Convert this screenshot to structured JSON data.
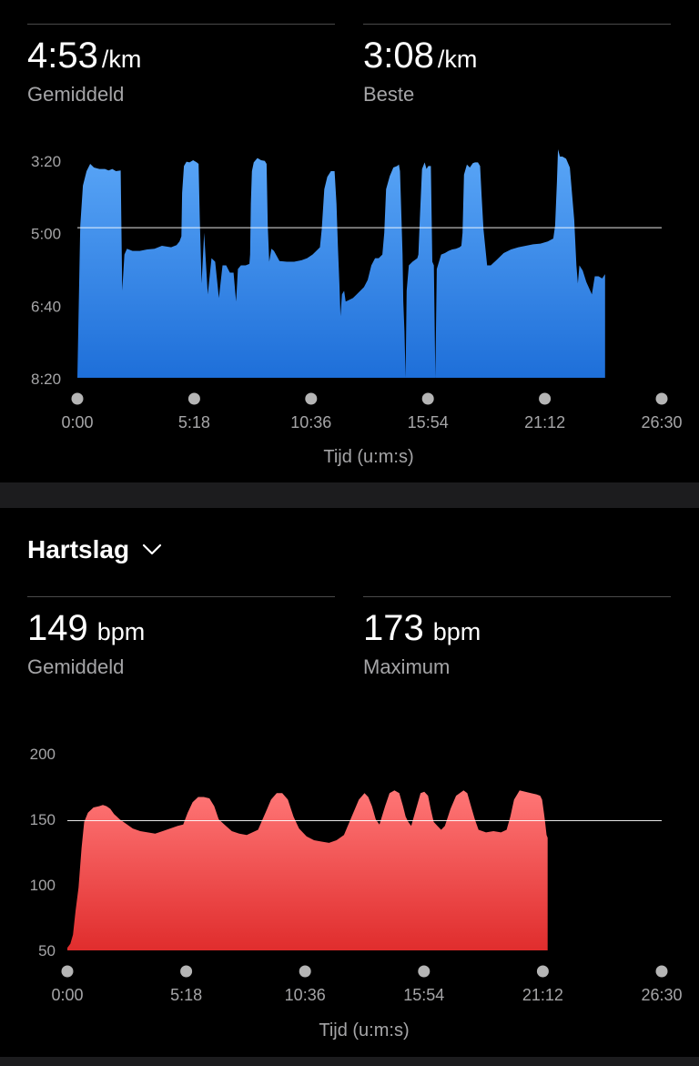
{
  "pace": {
    "average": {
      "value": "4:53",
      "unit": "/km",
      "label": "Gemiddeld"
    },
    "best": {
      "value": "3:08",
      "unit": "/km",
      "label": "Beste"
    }
  },
  "heart_rate": {
    "title": "Hartslag",
    "average": {
      "value": "149",
      "unit": "bpm",
      "label": "Gemiddeld"
    },
    "max": {
      "value": "173",
      "unit": "bpm",
      "label": "Maximum"
    }
  },
  "colors": {
    "pace_top": "#5aa6f7",
    "pace_bottom": "#1e6fd9",
    "hr_top": "#ff7676",
    "hr_bottom": "#e02d2d",
    "grid_text": "#a5a5a7",
    "axis_dot": "#b5b5b5"
  },
  "chart_data": [
    {
      "type": "area",
      "name": "pace",
      "y_ticks": [
        "3:20",
        "5:00",
        "6:40",
        "8:20"
      ],
      "y_tick_seconds": [
        200,
        300,
        400,
        500
      ],
      "ylim_seconds": [
        200,
        500
      ],
      "inverted": true,
      "reference_line_seconds": 293,
      "x_ticks": [
        "0:00",
        "5:18",
        "10:36",
        "15:54",
        "21:12",
        "26:30"
      ],
      "x_tick_seconds": [
        0,
        318,
        636,
        954,
        1272,
        1590
      ],
      "xlim_seconds": [
        0,
        1590
      ],
      "xlabel": "Tijd (u:m:s)",
      "points": [
        [
          0,
          500
        ],
        [
          8,
          290
        ],
        [
          15,
          235
        ],
        [
          25,
          215
        ],
        [
          35,
          205
        ],
        [
          45,
          210
        ],
        [
          60,
          212
        ],
        [
          75,
          212
        ],
        [
          85,
          214
        ],
        [
          95,
          212
        ],
        [
          105,
          215
        ],
        [
          118,
          214
        ],
        [
          122,
          380
        ],
        [
          128,
          330
        ],
        [
          135,
          322
        ],
        [
          150,
          325
        ],
        [
          170,
          325
        ],
        [
          190,
          323
        ],
        [
          210,
          322
        ],
        [
          230,
          318
        ],
        [
          255,
          320
        ],
        [
          270,
          317
        ],
        [
          278,
          312
        ],
        [
          283,
          305
        ],
        [
          285,
          245
        ],
        [
          290,
          208
        ],
        [
          297,
          202
        ],
        [
          305,
          203
        ],
        [
          315,
          200
        ],
        [
          325,
          203
        ],
        [
          330,
          205
        ],
        [
          333,
          280
        ],
        [
          338,
          370
        ],
        [
          345,
          300
        ],
        [
          355,
          385
        ],
        [
          365,
          335
        ],
        [
          375,
          340
        ],
        [
          385,
          390
        ],
        [
          395,
          345
        ],
        [
          405,
          345
        ],
        [
          415,
          355
        ],
        [
          425,
          355
        ],
        [
          432,
          395
        ],
        [
          437,
          350
        ],
        [
          445,
          345
        ],
        [
          458,
          345
        ],
        [
          468,
          343
        ],
        [
          470,
          330
        ],
        [
          472,
          260
        ],
        [
          475,
          215
        ],
        [
          480,
          203
        ],
        [
          490,
          197
        ],
        [
          500,
          200
        ],
        [
          510,
          201
        ],
        [
          515,
          205
        ],
        [
          518,
          290
        ],
        [
          522,
          340
        ],
        [
          528,
          322
        ],
        [
          535,
          325
        ],
        [
          550,
          339
        ],
        [
          570,
          340
        ],
        [
          590,
          340
        ],
        [
          610,
          338
        ],
        [
          625,
          335
        ],
        [
          640,
          330
        ],
        [
          650,
          325
        ],
        [
          660,
          320
        ],
        [
          665,
          295
        ],
        [
          672,
          240
        ],
        [
          680,
          223
        ],
        [
          690,
          215
        ],
        [
          695,
          215
        ],
        [
          700,
          215
        ],
        [
          705,
          260
        ],
        [
          709,
          320
        ],
        [
          713,
          370
        ],
        [
          716,
          415
        ],
        [
          720,
          385
        ],
        [
          726,
          380
        ],
        [
          730,
          395
        ],
        [
          750,
          390
        ],
        [
          760,
          385
        ],
        [
          770,
          380
        ],
        [
          780,
          375
        ],
        [
          790,
          365
        ],
        [
          800,
          345
        ],
        [
          810,
          335
        ],
        [
          820,
          335
        ],
        [
          830,
          330
        ],
        [
          835,
          300
        ],
        [
          840,
          240
        ],
        [
          850,
          222
        ],
        [
          860,
          210
        ],
        [
          870,
          208
        ],
        [
          875,
          206
        ],
        [
          878,
          215
        ],
        [
          882,
          280
        ],
        [
          885,
          330
        ],
        [
          887,
          395
        ],
        [
          890,
          436
        ],
        [
          893,
          500
        ],
        [
          896,
          380
        ],
        [
          902,
          345
        ],
        [
          912,
          340
        ],
        [
          920,
          337
        ],
        [
          925,
          335
        ],
        [
          928,
          330
        ],
        [
          932,
          280
        ],
        [
          938,
          212
        ],
        [
          945,
          203
        ],
        [
          950,
          212
        ],
        [
          955,
          208
        ],
        [
          962,
          208
        ],
        [
          966,
          340
        ],
        [
          970,
          345
        ],
        [
          972,
          420
        ],
        [
          974,
          500
        ],
        [
          978,
          350
        ],
        [
          990,
          330
        ],
        [
          1000,
          328
        ],
        [
          1010,
          325
        ],
        [
          1020,
          323
        ],
        [
          1030,
          322
        ],
        [
          1040,
          320
        ],
        [
          1045,
          318
        ],
        [
          1048,
          300
        ],
        [
          1052,
          220
        ],
        [
          1060,
          206
        ],
        [
          1068,
          210
        ],
        [
          1076,
          204
        ],
        [
          1082,
          203
        ],
        [
          1090,
          203
        ],
        [
          1096,
          208
        ],
        [
          1100,
          250
        ],
        [
          1105,
          295
        ],
        [
          1115,
          345
        ],
        [
          1125,
          345
        ],
        [
          1140,
          338
        ],
        [
          1160,
          328
        ],
        [
          1180,
          323
        ],
        [
          1200,
          320
        ],
        [
          1220,
          318
        ],
        [
          1240,
          316
        ],
        [
          1260,
          315
        ],
        [
          1280,
          312
        ],
        [
          1295,
          308
        ],
        [
          1300,
          290
        ],
        [
          1305,
          230
        ],
        [
          1308,
          185
        ],
        [
          1313,
          195
        ],
        [
          1320,
          195
        ],
        [
          1330,
          198
        ],
        [
          1340,
          210
        ],
        [
          1345,
          240
        ],
        [
          1352,
          282
        ],
        [
          1358,
          345
        ],
        [
          1362,
          370
        ],
        [
          1366,
          345
        ],
        [
          1375,
          352
        ],
        [
          1385,
          368
        ],
        [
          1400,
          385
        ],
        [
          1408,
          360
        ],
        [
          1418,
          360
        ],
        [
          1428,
          363
        ],
        [
          1436,
          357
        ]
      ]
    },
    {
      "type": "area",
      "name": "heart_rate",
      "y_ticks": [
        "50",
        "100",
        "150",
        "200"
      ],
      "y_tick_values": [
        50,
        100,
        150,
        200
      ],
      "ylim": [
        50,
        200
      ],
      "reference_line": 149,
      "x_ticks": [
        "0:00",
        "5:18",
        "10:36",
        "15:54",
        "21:12",
        "26:30"
      ],
      "x_tick_seconds": [
        0,
        318,
        636,
        954,
        1272,
        1590
      ],
      "xlim_seconds": [
        0,
        1590
      ],
      "xlabel": "Tijd (u:m:s)",
      "points": [
        [
          0,
          52
        ],
        [
          8,
          55
        ],
        [
          15,
          62
        ],
        [
          22,
          80
        ],
        [
          30,
          98
        ],
        [
          38,
          128
        ],
        [
          45,
          148
        ],
        [
          55,
          155
        ],
        [
          70,
          159
        ],
        [
          85,
          160
        ],
        [
          95,
          161
        ],
        [
          105,
          160
        ],
        [
          115,
          158
        ],
        [
          125,
          154
        ],
        [
          140,
          150
        ],
        [
          160,
          146
        ],
        [
          175,
          143
        ],
        [
          195,
          141
        ],
        [
          215,
          140
        ],
        [
          235,
          139
        ],
        [
          255,
          141
        ],
        [
          275,
          143
        ],
        [
          295,
          145
        ],
        [
          310,
          146
        ],
        [
          322,
          155
        ],
        [
          335,
          163
        ],
        [
          350,
          167
        ],
        [
          365,
          167
        ],
        [
          380,
          166
        ],
        [
          393,
          160
        ],
        [
          405,
          150
        ],
        [
          420,
          146
        ],
        [
          440,
          141
        ],
        [
          460,
          139
        ],
        [
          480,
          138
        ],
        [
          495,
          140
        ],
        [
          510,
          142
        ],
        [
          530,
          155
        ],
        [
          545,
          165
        ],
        [
          560,
          170
        ],
        [
          575,
          170
        ],
        [
          590,
          165
        ],
        [
          605,
          152
        ],
        [
          620,
          143
        ],
        [
          640,
          137
        ],
        [
          660,
          134
        ],
        [
          680,
          133
        ],
        [
          700,
          132
        ],
        [
          720,
          134
        ],
        [
          740,
          138
        ],
        [
          765,
          155
        ],
        [
          780,
          165
        ],
        [
          795,
          170
        ],
        [
          805,
          167
        ],
        [
          815,
          160
        ],
        [
          825,
          150
        ],
        [
          835,
          146
        ],
        [
          850,
          160
        ],
        [
          862,
          170
        ],
        [
          875,
          172
        ],
        [
          888,
          170
        ],
        [
          898,
          160
        ],
        [
          905,
          152
        ],
        [
          912,
          148
        ],
        [
          920,
          145
        ],
        [
          935,
          160
        ],
        [
          945,
          170
        ],
        [
          955,
          171
        ],
        [
          965,
          168
        ],
        [
          972,
          158
        ],
        [
          980,
          148
        ],
        [
          990,
          145
        ],
        [
          1000,
          142
        ],
        [
          1010,
          145
        ],
        [
          1025,
          158
        ],
        [
          1040,
          168
        ],
        [
          1060,
          172
        ],
        [
          1070,
          170
        ],
        [
          1080,
          160
        ],
        [
          1090,
          150
        ],
        [
          1100,
          142
        ],
        [
          1120,
          140
        ],
        [
          1140,
          141
        ],
        [
          1160,
          140
        ],
        [
          1175,
          142
        ],
        [
          1185,
          152
        ],
        [
          1195,
          165
        ],
        [
          1210,
          172
        ],
        [
          1225,
          171
        ],
        [
          1240,
          170
        ],
        [
          1255,
          169
        ],
        [
          1265,
          168
        ],
        [
          1270,
          165
        ],
        [
          1275,
          155
        ],
        [
          1278,
          148
        ],
        [
          1282,
          138
        ],
        [
          1285,
          136
        ]
      ]
    }
  ]
}
